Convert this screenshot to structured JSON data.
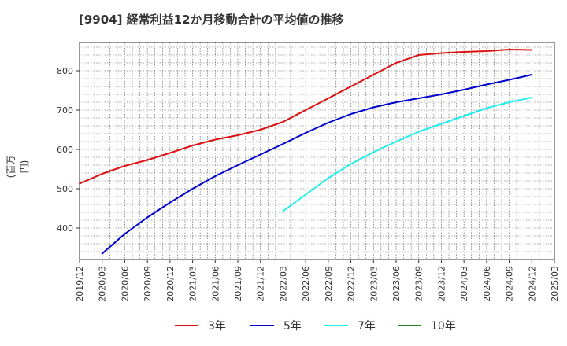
{
  "title": "[9904]  経常利益12か月移動合計の平均値の推移",
  "chart_data": {
    "type": "line",
    "ylabel": "(百万円)",
    "xlabel": "",
    "ylim": [
      320,
      872
    ],
    "yticks": [
      400,
      500,
      600,
      700,
      800
    ],
    "x_ticks": [
      "2019/12",
      "2020/03",
      "2020/06",
      "2020/09",
      "2020/12",
      "2021/03",
      "2021/06",
      "2021/09",
      "2021/12",
      "2022/03",
      "2022/06",
      "2022/09",
      "2022/12",
      "2023/03",
      "2023/06",
      "2023/09",
      "2023/12",
      "2024/03",
      "2024/06",
      "2024/09",
      "2024/12",
      "2025/03"
    ],
    "grid": true,
    "legend_position": "bottom",
    "series": [
      {
        "name": "3年",
        "color": "#dd1111",
        "points": [
          [
            "2019/12",
            513
          ],
          [
            "2020/03",
            538
          ],
          [
            "2020/06",
            558
          ],
          [
            "2020/09",
            573
          ],
          [
            "2020/12",
            591
          ],
          [
            "2021/03",
            610
          ],
          [
            "2021/06",
            625
          ],
          [
            "2021/09",
            636
          ],
          [
            "2021/12",
            650
          ],
          [
            "2022/03",
            670
          ],
          [
            "2022/06",
            700
          ],
          [
            "2022/09",
            730
          ],
          [
            "2022/12",
            760
          ],
          [
            "2023/03",
            790
          ],
          [
            "2023/06",
            820
          ],
          [
            "2023/09",
            840
          ],
          [
            "2023/12",
            845
          ],
          [
            "2024/03",
            848
          ],
          [
            "2024/06",
            850
          ],
          [
            "2024/09",
            854
          ],
          [
            "2024/12",
            853
          ]
        ]
      },
      {
        "name": "5年",
        "color": "#0000cc",
        "points": [
          [
            "2020/03",
            335
          ],
          [
            "2020/06",
            385
          ],
          [
            "2020/09",
            427
          ],
          [
            "2020/12",
            465
          ],
          [
            "2021/03",
            500
          ],
          [
            "2021/06",
            532
          ],
          [
            "2021/09",
            560
          ],
          [
            "2021/12",
            587
          ],
          [
            "2022/03",
            614
          ],
          [
            "2022/06",
            642
          ],
          [
            "2022/09",
            668
          ],
          [
            "2022/12",
            690
          ],
          [
            "2023/03",
            707
          ],
          [
            "2023/06",
            720
          ],
          [
            "2023/09",
            730
          ],
          [
            "2023/12",
            740
          ],
          [
            "2024/03",
            752
          ],
          [
            "2024/06",
            765
          ],
          [
            "2024/09",
            777
          ],
          [
            "2024/12",
            790
          ]
        ]
      },
      {
        "name": "7年",
        "color": "#22eeee",
        "points": [
          [
            "2022/03",
            443
          ],
          [
            "2022/06",
            485
          ],
          [
            "2022/09",
            527
          ],
          [
            "2022/12",
            563
          ],
          [
            "2023/03",
            593
          ],
          [
            "2023/06",
            620
          ],
          [
            "2023/09",
            645
          ],
          [
            "2023/12",
            665
          ],
          [
            "2024/03",
            685
          ],
          [
            "2024/06",
            705
          ],
          [
            "2024/09",
            720
          ],
          [
            "2024/12",
            732
          ]
        ]
      },
      {
        "name": "10年",
        "color": "#228822",
        "points": []
      }
    ]
  }
}
